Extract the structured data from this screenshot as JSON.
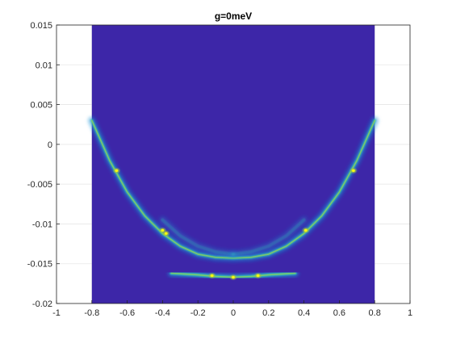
{
  "chart_data": {
    "type": "heatmap",
    "title": "g=0meV",
    "xlabel": "",
    "ylabel": "",
    "xlim": [
      -1,
      1
    ],
    "ylim": [
      -0.02,
      0.015
    ],
    "x_ticks": [
      "-1",
      "-0.8",
      "-0.6",
      "-0.4",
      "-0.2",
      "0",
      "0.2",
      "0.4",
      "0.6",
      "0.8",
      "1"
    ],
    "y_ticks": [
      "0.015",
      "0.01",
      "0.005",
      "0",
      "-0.005",
      "-0.01",
      "-0.015",
      "-0.02"
    ],
    "x_tick_values": [
      -1,
      -0.8,
      -0.6,
      -0.4,
      -0.2,
      0,
      0.2,
      0.4,
      0.6,
      0.8,
      1
    ],
    "y_tick_values": [
      0.015,
      0.01,
      0.005,
      0,
      -0.005,
      -0.01,
      -0.015,
      -0.02
    ],
    "data_extent": {
      "x": [
        -0.8,
        0.8
      ],
      "y": [
        -0.02,
        0.015
      ]
    },
    "grid": true,
    "colormap": "parula",
    "background_color": "#3d26a8",
    "bands": [
      {
        "name": "main-parabola",
        "points": [
          [
            -0.8,
            0.003
          ],
          [
            -0.7,
            -0.002
          ],
          [
            -0.6,
            -0.006
          ],
          [
            -0.5,
            -0.009
          ],
          [
            -0.4,
            -0.0112
          ],
          [
            -0.3,
            -0.0128
          ],
          [
            -0.2,
            -0.0138
          ],
          [
            -0.1,
            -0.0142
          ],
          [
            0.0,
            -0.0143
          ],
          [
            0.1,
            -0.0142
          ],
          [
            0.2,
            -0.0138
          ],
          [
            0.3,
            -0.0128
          ],
          [
            0.4,
            -0.0112
          ],
          [
            0.5,
            -0.009
          ],
          [
            0.6,
            -0.006
          ],
          [
            0.7,
            -0.002
          ],
          [
            0.8,
            0.003
          ]
        ],
        "intensity": 0.7
      },
      {
        "name": "low-arc",
        "points": [
          [
            -0.35,
            -0.0162
          ],
          [
            -0.2,
            -0.0164
          ],
          [
            -0.1,
            -0.0166
          ],
          [
            0.0,
            -0.0167
          ],
          [
            0.1,
            -0.0166
          ],
          [
            0.2,
            -0.0164
          ],
          [
            0.35,
            -0.0162
          ]
        ],
        "intensity": 0.85
      },
      {
        "name": "faint-left",
        "points": [
          [
            -0.4,
            -0.0095
          ],
          [
            -0.3,
            -0.0115
          ],
          [
            -0.2,
            -0.0128
          ],
          [
            -0.1,
            -0.0135
          ],
          [
            0.0,
            -0.0138
          ]
        ],
        "intensity": 0.25
      },
      {
        "name": "faint-right",
        "points": [
          [
            0.0,
            -0.0138
          ],
          [
            0.1,
            -0.0135
          ],
          [
            0.2,
            -0.0128
          ],
          [
            0.3,
            -0.0115
          ],
          [
            0.4,
            -0.0095
          ]
        ],
        "intensity": 0.25
      }
    ],
    "hotspots": [
      {
        "x": -0.66,
        "y": -0.0033
      },
      {
        "x": 0.68,
        "y": -0.0033
      },
      {
        "x": -0.4,
        "y": -0.0108
      },
      {
        "x": 0.41,
        "y": -0.0108
      },
      {
        "x": -0.38,
        "y": -0.0112
      },
      {
        "x": 0.0,
        "y": -0.0167
      },
      {
        "x": -0.12,
        "y": -0.0165
      },
      {
        "x": 0.14,
        "y": -0.0165
      }
    ]
  }
}
